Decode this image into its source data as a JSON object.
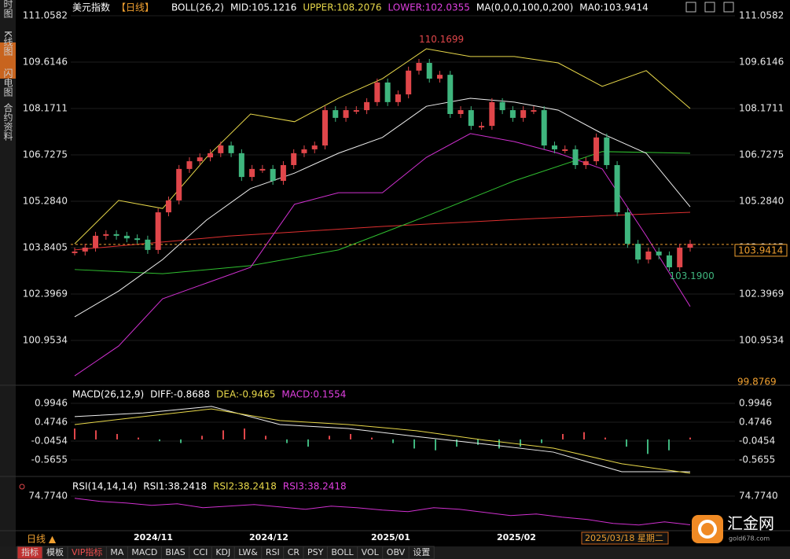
{
  "sidebar": [
    "分时图",
    "K线图",
    "闪电图",
    "合约资料"
  ],
  "header": {
    "symbol": "美元指数",
    "period": "【日线】",
    "boll": "BOLL(26,2)",
    "mid": "MID:105.1216",
    "upper": "UPPER:108.2076",
    "lower": "LOWER:102.0355",
    "ma": "MA(0,0,0,100,0,200)",
    "ma0": "MA0:103.9414"
  },
  "price": {
    "yticks": [
      111.0582,
      109.6146,
      108.1711,
      106.7275,
      {
        "value": 105.284,
        "label": "105.2840"
      },
      103.8405,
      102.3969,
      100.9534
    ],
    "bottom_label": 99.8769,
    "current": 103.9414,
    "high": 110.1699,
    "low": {
      "value": 103.19,
      "label": "103.1900"
    },
    "closes": [
      103.72,
      103.84,
      104.21,
      104.26,
      104.21,
      104.13,
      104.09,
      103.77,
      104.94,
      105.31,
      106.29,
      106.53,
      106.65,
      106.78,
      107.02,
      106.78,
      106.04,
      106.29,
      106.29,
      105.92,
      106.41,
      106.78,
      106.9,
      107.02,
      108.12,
      107.88,
      108.12,
      108.12,
      108.37,
      108.98,
      108.37,
      108.61,
      109.35,
      109.59,
      109.1,
      109.22,
      108.0,
      108.12,
      107.63,
      107.63,
      108.37,
      108.12,
      107.88,
      108.12,
      108.12,
      107.02,
      106.9,
      106.9,
      106.41,
      106.53,
      107.27,
      106.41,
      104.94,
      103.96,
      103.47,
      103.72,
      103.6,
      103.23,
      103.84,
      103.96
    ],
    "upper": [
      103.96,
      105.31,
      105.06,
      106.65,
      108.0,
      107.76,
      108.49,
      109.1,
      110.03,
      109.79,
      109.79,
      109.59,
      108.86,
      109.35,
      108.17
    ],
    "mid": [
      101.69,
      102.49,
      103.47,
      104.7,
      105.68,
      106.16,
      106.78,
      107.27,
      108.24,
      108.49,
      108.37,
      108.12,
      107.39,
      106.78,
      105.11
    ],
    "lower": [
      99.85,
      100.78,
      102.25,
      102.74,
      103.23,
      105.19,
      105.55,
      105.55,
      106.65,
      107.39,
      107.14,
      106.78,
      106.29,
      104.21,
      102.01
    ],
    "ma_red": [
      103.77,
      104.2,
      104.5,
      104.75,
      104.94
    ],
    "ma_green": [
      103.16,
      103.03,
      103.28,
      103.77,
      104.82,
      105.92,
      106.83,
      106.78
    ]
  },
  "macd": {
    "title": "MACD(26,12,9)",
    "diff": "DIFF:-0.8688",
    "dea": "DEA:-0.9465",
    "macd": "MACD:0.1554",
    "yticks": [
      0.9946,
      0.4746,
      -0.0454,
      -0.5655
    ],
    "diff_line": [
      0.63,
      0.73,
      0.91,
      0.41,
      0.3,
      0.08,
      -0.13,
      -0.35,
      -0.89,
      -0.89
    ],
    "dea_line": [
      0.41,
      0.63,
      0.84,
      0.52,
      0.41,
      0.24,
      -0.02,
      -0.24,
      -0.67,
      -0.93
    ],
    "hist": [
      0.3,
      0.25,
      0.15,
      0.05,
      -0.05,
      -0.1,
      0.1,
      0.25,
      0.3,
      0.1,
      -0.1,
      -0.2,
      0.1,
      0.15,
      0.05,
      -0.1,
      -0.25,
      -0.3,
      -0.2,
      -0.15,
      -0.25,
      -0.2,
      -0.1,
      0.15,
      0.2,
      0.05,
      -0.2,
      -0.4,
      -0.3,
      0.05
    ]
  },
  "rsi": {
    "title": "RSI(14,14,14)",
    "rsi1": "RSI1:38.2418",
    "rsi2": "RSI2:38.2418",
    "rsi3": "RSI3:38.2418",
    "yticks": [
      {
        "value": 74.774,
        "label": "74.7740"
      }
    ],
    "line": [
      72,
      68,
      66,
      63,
      65,
      60,
      62,
      64,
      61,
      58,
      62,
      60,
      57,
      55,
      60,
      58,
      54,
      50,
      52,
      48,
      45,
      40,
      38,
      42,
      38.24
    ]
  },
  "x_labels": [
    "2024/11",
    "2024/12",
    "2025/01",
    "2025/02"
  ],
  "date_box": "2025/03/18 星期二",
  "period_switch": "日线 ▲",
  "logo": {
    "name": "汇金网",
    "site": "gold678.com"
  },
  "tabs": [
    "指标",
    "模板",
    "VIP指标",
    "MA",
    "MACD",
    "BIAS",
    "CCI",
    "KDJ",
    "LW&",
    "RSI",
    "CR",
    "PSY",
    "BOLL",
    "VOL",
    "OBV",
    "设置"
  ]
}
